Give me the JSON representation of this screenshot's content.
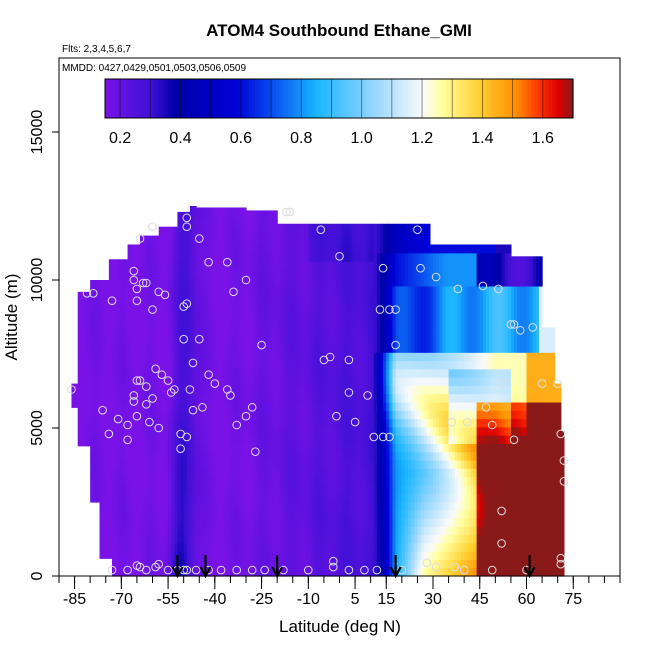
{
  "chart_data": {
    "type": "heatmap",
    "title": "ATOM4 Southbound Ethane_GMI",
    "subtitle_flights": "Flts: 2,3,4,5,6,7",
    "subtitle_dates": "MMDD: 0427,0429,0501,0503,0506,0509",
    "xlabel": "Latitude (deg N)",
    "ylabel": "Altitude (m)",
    "xlim": [
      -90,
      90
    ],
    "ylim": [
      0,
      17500
    ],
    "xticks": [
      -85,
      -70,
      -55,
      -40,
      -25,
      -10,
      5,
      15,
      30,
      45,
      60,
      75
    ],
    "yticks": [
      0,
      5000,
      10000,
      15000
    ],
    "colorbar": {
      "range": [
        0.15,
        1.7
      ],
      "ticks": [
        0.2,
        0.4,
        0.6,
        0.8,
        1.0,
        1.2,
        1.4,
        1.6
      ],
      "tick_labels": [
        "0.2",
        "0.4",
        "0.6",
        "0.8",
        "1.0",
        "1.2",
        "1.4",
        "1.6"
      ],
      "colors": [
        "#7a12e8",
        "#3d10d6",
        "#0000a8",
        "#0000d8",
        "#0a50f0",
        "#17b4ff",
        "#9ad8ff",
        "#fafafa",
        "#ffffa0",
        "#ffd030",
        "#ff8c00",
        "#ff3000",
        "#d80000",
        "#8a1a1a"
      ],
      "color_positions": [
        0.0,
        0.1,
        0.15,
        0.28,
        0.36,
        0.45,
        0.58,
        0.68,
        0.72,
        0.8,
        0.88,
        0.93,
        0.97,
        1.0
      ]
    },
    "flight_latitude_arrows": [
      -52,
      -43,
      -20,
      18,
      61
    ],
    "observation_points": [
      {
        "lat": -86,
        "alt": 6300
      },
      {
        "lat": -81,
        "alt": 9550
      },
      {
        "lat": -79,
        "alt": 9550
      },
      {
        "lat": -73,
        "alt": 9300
      },
      {
        "lat": -76,
        "alt": 5600
      },
      {
        "lat": -74,
        "alt": 4800
      },
      {
        "lat": -71,
        "alt": 5300
      },
      {
        "lat": -68,
        "alt": 4600
      },
      {
        "lat": -68,
        "alt": 5100
      },
      {
        "lat": -66,
        "alt": 6100
      },
      {
        "lat": -66,
        "alt": 5900
      },
      {
        "lat": -65,
        "alt": 6600
      },
      {
        "lat": -65,
        "alt": 5400
      },
      {
        "lat": -64,
        "alt": 6600
      },
      {
        "lat": -62,
        "alt": 6400
      },
      {
        "lat": -62,
        "alt": 5800
      },
      {
        "lat": -61,
        "alt": 5200
      },
      {
        "lat": -60,
        "alt": 6000
      },
      {
        "lat": -59,
        "alt": 7000
      },
      {
        "lat": -58,
        "alt": 5000
      },
      {
        "lat": -57,
        "alt": 6800
      },
      {
        "lat": -55,
        "alt": 6600
      },
      {
        "lat": -54,
        "alt": 6200
      },
      {
        "lat": -53,
        "alt": 6300
      },
      {
        "lat": -51,
        "alt": 4800
      },
      {
        "lat": -51,
        "alt": 4300
      },
      {
        "lat": -49,
        "alt": 4700
      },
      {
        "lat": -66,
        "alt": 10300
      },
      {
        "lat": -66,
        "alt": 10000
      },
      {
        "lat": -65,
        "alt": 9700
      },
      {
        "lat": -63,
        "alt": 9900
      },
      {
        "lat": -62,
        "alt": 9900
      },
      {
        "lat": -60,
        "alt": 9000
      },
      {
        "lat": -58,
        "alt": 9600
      },
      {
        "lat": -56,
        "alt": 9500
      },
      {
        "lat": -65,
        "alt": 9300
      },
      {
        "lat": -50,
        "alt": 9100
      },
      {
        "lat": -49,
        "alt": 9200
      },
      {
        "lat": -50,
        "alt": 8000
      },
      {
        "lat": -45,
        "alt": 8000
      },
      {
        "lat": -47,
        "alt": 7200
      },
      {
        "lat": -48,
        "alt": 6300
      },
      {
        "lat": -47,
        "alt": 5600
      },
      {
        "lat": -44,
        "alt": 5700
      },
      {
        "lat": -42,
        "alt": 6800
      },
      {
        "lat": -40,
        "alt": 6500
      },
      {
        "lat": -36,
        "alt": 6300
      },
      {
        "lat": -35,
        "alt": 6100
      },
      {
        "lat": -33,
        "alt": 5100
      },
      {
        "lat": -30,
        "alt": 5400
      },
      {
        "lat": -28,
        "alt": 5700
      },
      {
        "lat": -27,
        "alt": 4200
      },
      {
        "lat": -25,
        "alt": 7800
      },
      {
        "lat": -34,
        "alt": 9600
      },
      {
        "lat": -42,
        "alt": 10600
      },
      {
        "lat": -36,
        "alt": 10600
      },
      {
        "lat": -30,
        "alt": 10000
      },
      {
        "lat": -45,
        "alt": 11400
      },
      {
        "lat": -49,
        "alt": 12100
      },
      {
        "lat": -49,
        "alt": 11800
      },
      {
        "lat": -60,
        "alt": 11800
      },
      {
        "lat": -64,
        "alt": 11400
      },
      {
        "lat": -17,
        "alt": 12300
      },
      {
        "lat": -16,
        "alt": 12300
      },
      {
        "lat": -6,
        "alt": 11700
      },
      {
        "lat": 0,
        "alt": 10800
      },
      {
        "lat": -5,
        "alt": 7300
      },
      {
        "lat": -3,
        "alt": 7400
      },
      {
        "lat": 3,
        "alt": 7300
      },
      {
        "lat": -1,
        "alt": 5400
      },
      {
        "lat": 3,
        "alt": 6200
      },
      {
        "lat": 5,
        "alt": 5200
      },
      {
        "lat": 9,
        "alt": 6100
      },
      {
        "lat": 11,
        "alt": 4700
      },
      {
        "lat": 14,
        "alt": 4700
      },
      {
        "lat": 16,
        "alt": 4700
      },
      {
        "lat": 13,
        "alt": 9000
      },
      {
        "lat": 16,
        "alt": 9000
      },
      {
        "lat": 18,
        "alt": 9000
      },
      {
        "lat": 18,
        "alt": 7800
      },
      {
        "lat": 25,
        "alt": 11700
      },
      {
        "lat": 14,
        "alt": 10400
      },
      {
        "lat": 26,
        "alt": 10400
      },
      {
        "lat": 31,
        "alt": 10100
      },
      {
        "lat": 38,
        "alt": 9700
      },
      {
        "lat": 46,
        "alt": 9800
      },
      {
        "lat": 51,
        "alt": 9700
      },
      {
        "lat": 55,
        "alt": 8500
      },
      {
        "lat": 56,
        "alt": 8500
      },
      {
        "lat": 58,
        "alt": 8300
      },
      {
        "lat": 62,
        "alt": 8400
      },
      {
        "lat": 52,
        "alt": 6500
      },
      {
        "lat": 65,
        "alt": 6500
      },
      {
        "lat": 70,
        "alt": 6500
      },
      {
        "lat": 71,
        "alt": 4800
      },
      {
        "lat": 72,
        "alt": 3900
      },
      {
        "lat": 72,
        "alt": 3200
      },
      {
        "lat": 36,
        "alt": 5200
      },
      {
        "lat": 41,
        "alt": 5200
      },
      {
        "lat": 47,
        "alt": 5700
      },
      {
        "lat": 56,
        "alt": 4600
      },
      {
        "lat": 49,
        "alt": 5100
      },
      {
        "lat": 52,
        "alt": 2200
      },
      {
        "lat": 52,
        "alt": 1100
      },
      {
        "lat": 71,
        "alt": 400
      },
      {
        "lat": 71,
        "alt": 600
      },
      {
        "lat": 28,
        "alt": 450
      },
      {
        "lat": 31,
        "alt": 300
      },
      {
        "lat": 40,
        "alt": 200
      },
      {
        "lat": 49,
        "alt": 200
      },
      {
        "lat": 37,
        "alt": 300
      },
      {
        "lat": 60,
        "alt": 200
      },
      {
        "lat": -73,
        "alt": 200
      },
      {
        "lat": -68,
        "alt": 200
      },
      {
        "lat": -65,
        "alt": 350
      },
      {
        "lat": -64,
        "alt": 300
      },
      {
        "lat": -62,
        "alt": 200
      },
      {
        "lat": -59,
        "alt": 300
      },
      {
        "lat": -58,
        "alt": 400
      },
      {
        "lat": -55,
        "alt": 200
      },
      {
        "lat": -52,
        "alt": 200
      },
      {
        "lat": -50,
        "alt": 200
      },
      {
        "lat": -49,
        "alt": 200
      },
      {
        "lat": -46,
        "alt": 200
      },
      {
        "lat": -42,
        "alt": 200
      },
      {
        "lat": -38,
        "alt": 200
      },
      {
        "lat": -33,
        "alt": 200
      },
      {
        "lat": -28,
        "alt": 200
      },
      {
        "lat": -24,
        "alt": 200
      },
      {
        "lat": -18,
        "alt": 200
      },
      {
        "lat": -10,
        "alt": 200
      },
      {
        "lat": -2,
        "alt": 300
      },
      {
        "lat": -2,
        "alt": 500
      },
      {
        "lat": 3,
        "alt": 200
      },
      {
        "lat": 8,
        "alt": 200
      },
      {
        "lat": 12,
        "alt": 200
      },
      {
        "lat": 20,
        "alt": 200
      }
    ]
  }
}
